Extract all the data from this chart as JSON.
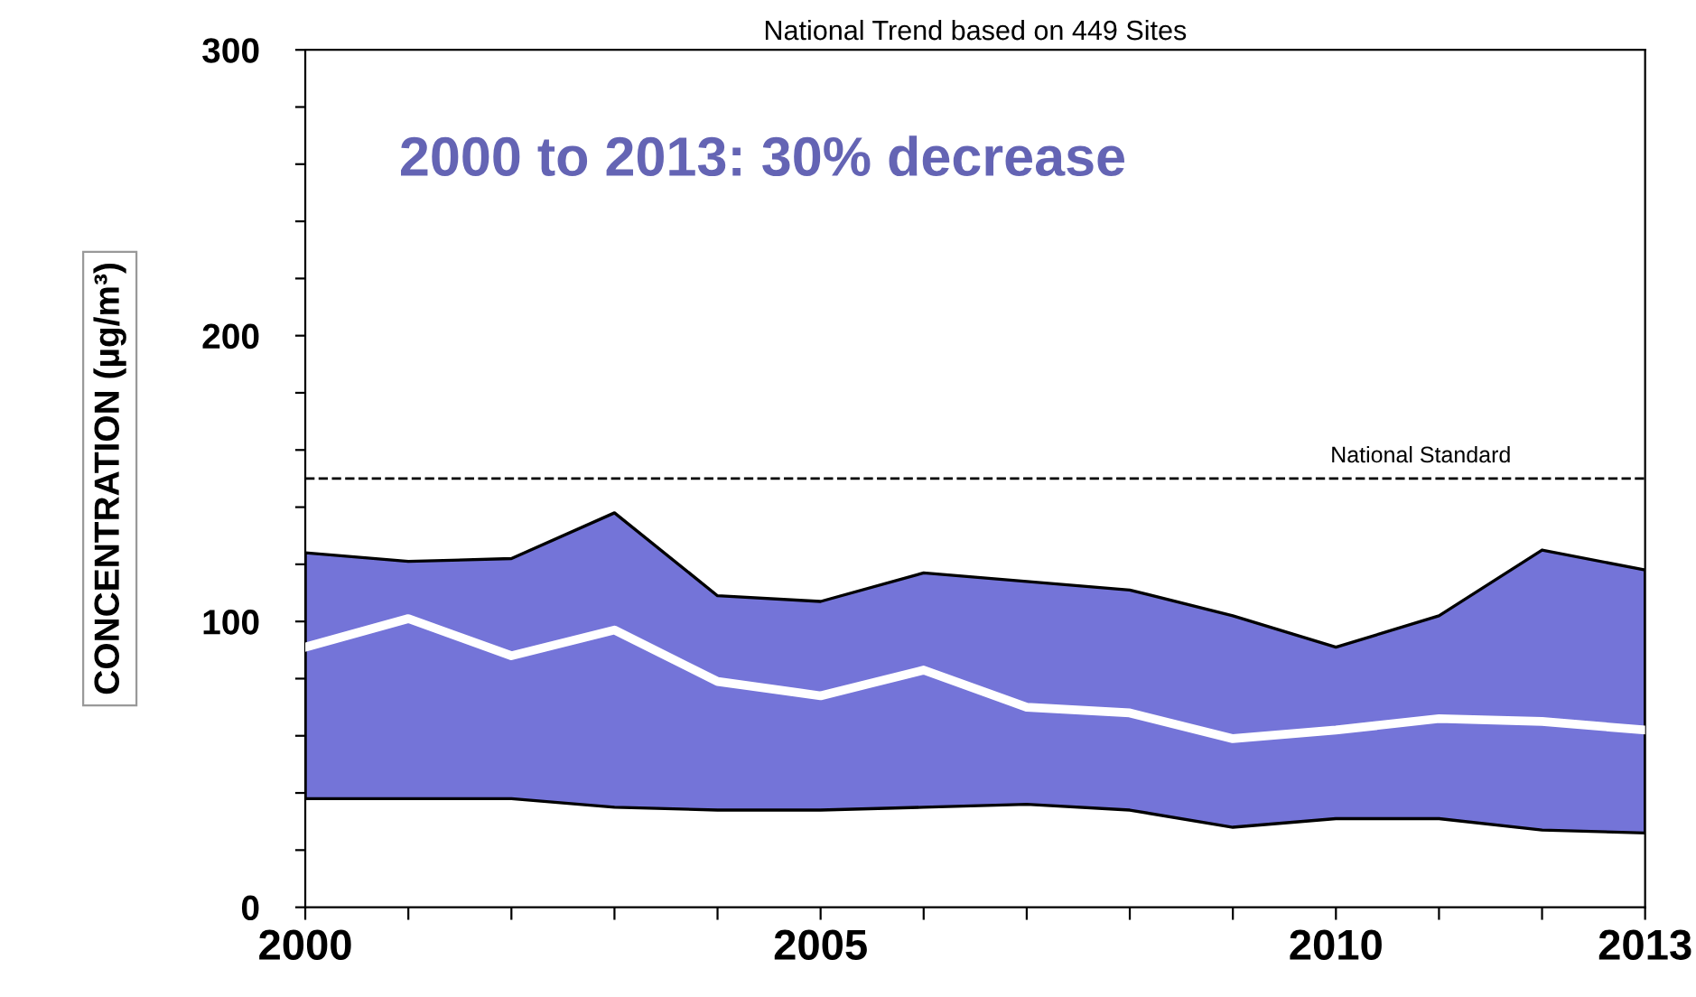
{
  "chart_data": {
    "type": "line",
    "title": "National Trend based on 449 Sites",
    "ylabel": "CONCENTRATION (µg/m³)",
    "annotations": [
      "2000 to 2013: 30% decrease"
    ],
    "x": [
      2000,
      2001,
      2002,
      2003,
      2004,
      2005,
      2006,
      2007,
      2008,
      2009,
      2010,
      2011,
      2012,
      2013
    ],
    "series": [
      {
        "color": "#ffffff",
        "values": [
          91,
          101,
          88,
          97,
          79,
          74,
          83,
          70,
          68,
          59,
          62,
          66,
          65,
          62
        ],
        "lower": [
          38,
          38,
          38,
          35,
          34,
          34,
          35,
          36,
          34,
          28,
          31,
          31,
          27,
          26
        ],
        "upper": [
          124,
          121,
          122,
          138,
          109,
          107,
          117,
          114,
          111,
          102,
          91,
          102,
          125,
          118
        ]
      }
    ],
    "xlim": [
      2000,
      2013
    ],
    "xticks": [
      2000,
      {
        "value": 2001,
        "label": null
      },
      {
        "value": 2002,
        "label": null
      },
      {
        "value": 2003,
        "label": null
      },
      {
        "value": 2004,
        "label": null
      },
      2005,
      {
        "value": 2006,
        "label": null
      },
      {
        "value": 2007,
        "label": null
      },
      {
        "value": 2008,
        "label": null
      },
      {
        "value": 2009,
        "label": null
      },
      2010,
      {
        "value": 2011,
        "label": null
      },
      {
        "value": 2012,
        "label": null
      },
      2013
    ],
    "ylim": [
      0,
      300
    ],
    "yticks": [
      0,
      {
        "value": 20,
        "label": null
      },
      {
        "value": 40,
        "label": null
      },
      {
        "value": 60,
        "label": null
      },
      {
        "value": 80,
        "label": null
      },
      100,
      {
        "value": 120,
        "label": null
      },
      {
        "value": 140,
        "label": null
      },
      {
        "value": 160,
        "label": null
      },
      {
        "value": 180,
        "label": null
      },
      200,
      {
        "value": 220,
        "label": null
      },
      {
        "value": 240,
        "label": null
      },
      {
        "value": 260,
        "label": null
      },
      {
        "value": 280,
        "label": null
      },
      300
    ],
    "ref_lines": [
      {
        "axis": "y",
        "value": 150,
        "label": "National Standard",
        "color": "#000000",
        "line_style": "dashed"
      }
    ],
    "grid": false,
    "legend": false,
    "marker": "none",
    "line_style": "solid"
  }
}
